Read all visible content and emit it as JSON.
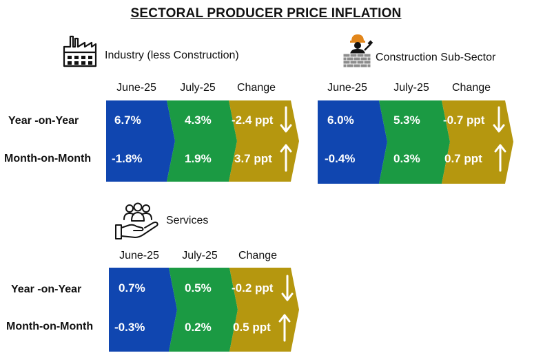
{
  "title": "SECTORAL PRODUCER PRICE INFLATION",
  "colors": {
    "blue": "#1046b0",
    "green": "#1b9a43",
    "gold": "#b5970f",
    "text": "#111111"
  },
  "sections": [
    {
      "name": "Industry (less Construction)",
      "icon": "factory-icon",
      "headers": [
        "June-25",
        "July-25",
        "Change"
      ],
      "rows": [
        {
          "label": "Year -on-Year",
          "june": "6.7%",
          "july": "4.3%",
          "change": "-2.4 ppt",
          "direction": "down"
        },
        {
          "label": "Month-on-Month",
          "june": "-1.8%",
          "july": "1.9%",
          "change": "3.7 ppt",
          "direction": "up"
        }
      ]
    },
    {
      "name": "Construction Sub-Sector",
      "icon": "construction-worker-icon",
      "headers": [
        "June-25",
        "July-25",
        "Change"
      ],
      "rows": [
        {
          "label": "Year -on-Year",
          "june": "6.0%",
          "july": "5.3%",
          "change": "-0.7 ppt",
          "direction": "down"
        },
        {
          "label": "Month-on-Month",
          "june": "-0.4%",
          "july": "0.3%",
          "change": "0.7 ppt",
          "direction": "up"
        }
      ]
    },
    {
      "name": "Services",
      "icon": "services-hand-people-icon",
      "headers": [
        "June-25",
        "July-25",
        "Change"
      ],
      "rows": [
        {
          "label": "Year -on-Year",
          "june": "0.7%",
          "july": "0.5%",
          "change": "-0.2 ppt",
          "direction": "down"
        },
        {
          "label": "Month-on-Month",
          "june": "-0.3%",
          "july": "0.2%",
          "change": "0.5 ppt",
          "direction": "up"
        }
      ]
    }
  ]
}
